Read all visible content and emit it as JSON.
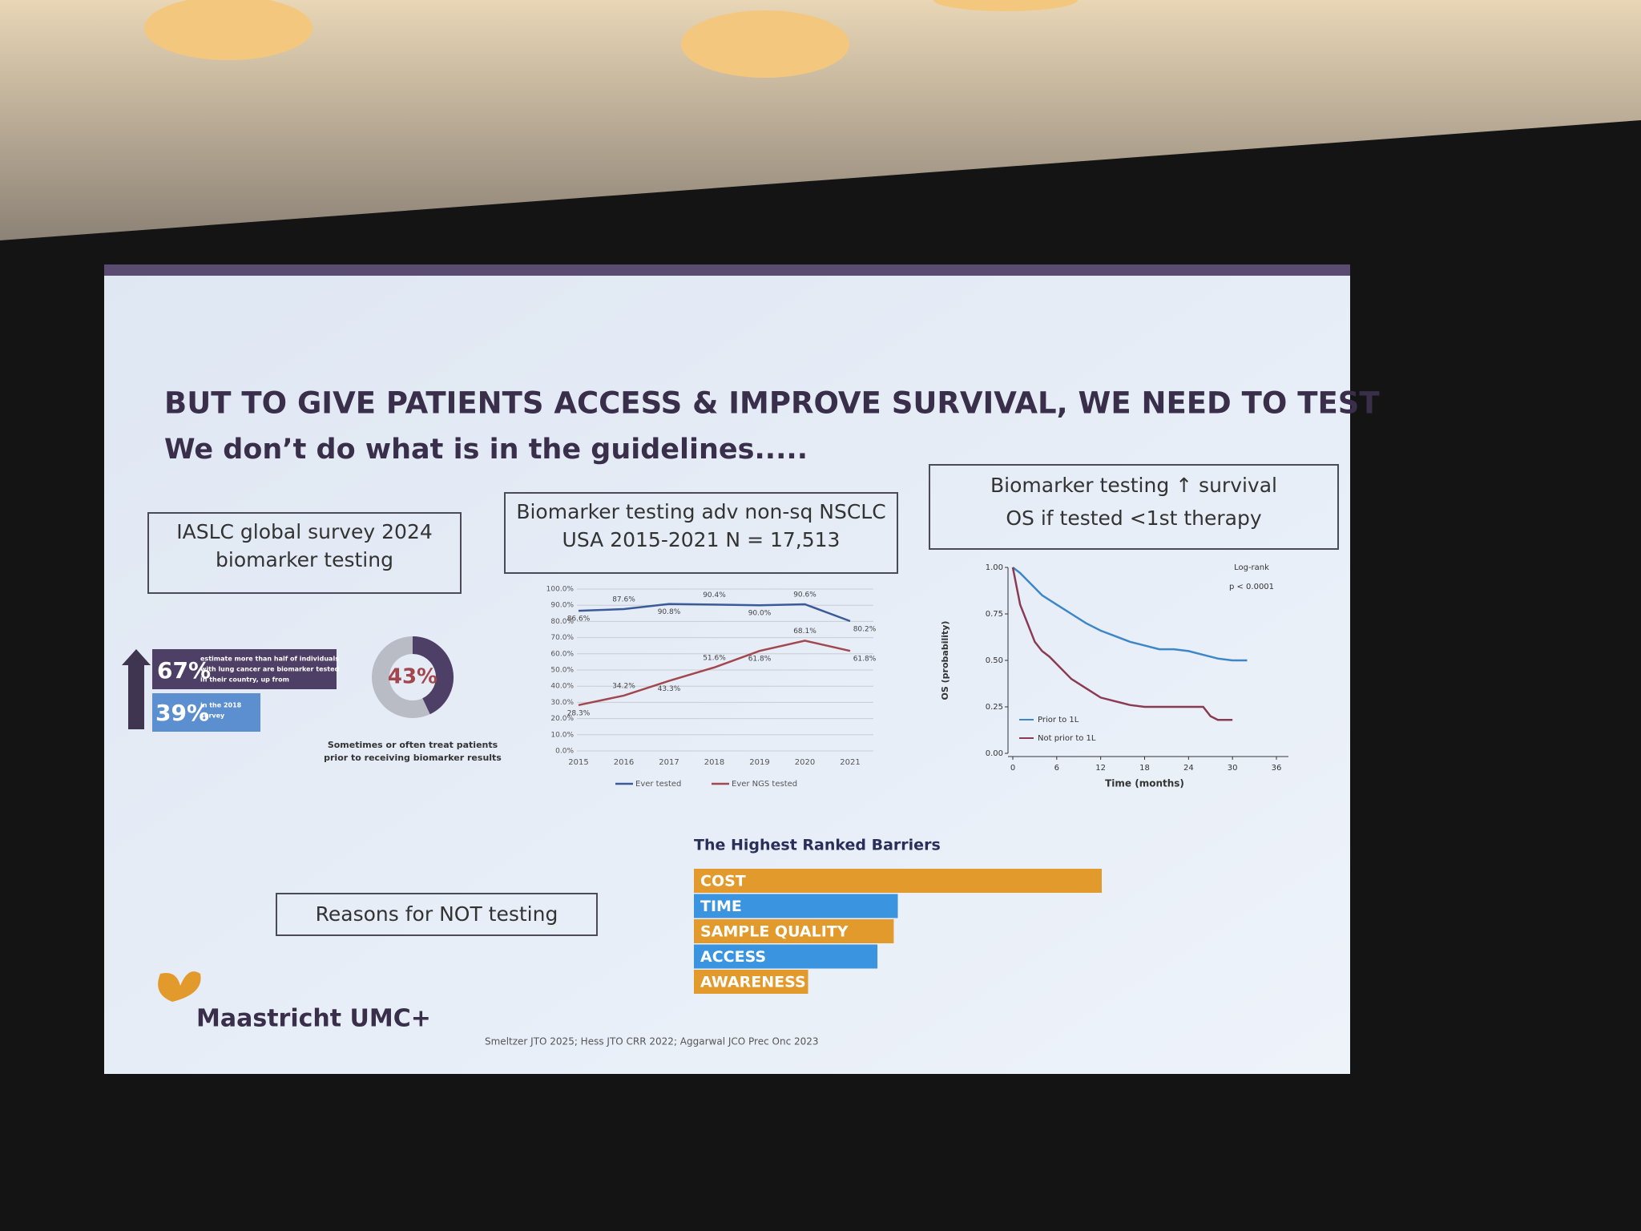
{
  "slide": {
    "title": "BUT TO GIVE PATIENTS ACCESS & IMPROVE SURVIVAL, WE NEED TO TEST",
    "subtitle": "We don’t do what is in the guidelines.....",
    "box_survey": [
      "IASLC global survey 2024",
      "biomarker testing"
    ],
    "box_usa": [
      "Biomarker testing adv non-sq NSCLC",
      "USA 2015-2021 N = 17,513"
    ],
    "box_survival": [
      "Biomarker testing ↑ survival",
      "OS if tested <1st therapy"
    ],
    "stats": [
      {
        "value": "67%",
        "text": [
          "estimate more than half of individuals",
          "with lung cancer are biomarker tested",
          "in their country, up from"
        ]
      },
      {
        "value": "39%",
        "text": [
          "in the 2018",
          "survey"
        ]
      }
    ],
    "reasons": "Reasons for NOT testing",
    "logo": "Maastricht UMC+",
    "footnote": "Smeltzer JTO 2025; Hess JTO CRR 2022; Aggarwal JCO Prec Onc 2023"
  },
  "chart_data": [
    {
      "type": "donut",
      "values": [
        43
      ],
      "value_labels": [
        "43%"
      ],
      "color": "#4e3f66",
      "rest_color": "#b9bcc4",
      "caption": [
        "Sometimes or often treat patients",
        "prior to receiving biomarker results"
      ]
    },
    {
      "type": "line",
      "categories": [
        "2015",
        "2016",
        "2017",
        "2018",
        "2019",
        "2020",
        "2021"
      ],
      "ylim": [
        0,
        100
      ],
      "yticks": [
        {
          "value": 0,
          "label": "0.0%"
        },
        {
          "value": 10,
          "label": "10.0%"
        },
        {
          "value": 20,
          "label": "20.0%"
        },
        {
          "value": 30,
          "label": "30.0%"
        },
        {
          "value": 40,
          "label": "40.0%"
        },
        {
          "value": 50,
          "label": "50.0%"
        },
        {
          "value": 60,
          "label": "60.0%"
        },
        {
          "value": 70,
          "label": "70.0%"
        },
        {
          "value": 80,
          "label": "80.0%"
        },
        {
          "value": 90,
          "label": "90.0%"
        },
        {
          "value": 100,
          "label": "100.0%"
        }
      ],
      "grid": true,
      "series": [
        {
          "name": "Ever tested",
          "color": "#3b5a9a",
          "values": [
            86.6,
            87.6,
            90.8,
            90.4,
            90.0,
            90.6,
            80.2
          ],
          "value_labels": [
            "86.6%",
            "87.6%",
            "90.8%",
            "90.4%",
            "90.0%",
            "90.6%",
            "80.2%"
          ]
        },
        {
          "name": "Ever NGS tested",
          "color": "#a3474f",
          "values": [
            28.3,
            34.2,
            43.3,
            51.6,
            61.8,
            68.1,
            61.8
          ],
          "value_labels": [
            "28.3%",
            "34.2%",
            "43.3%",
            "51.6%",
            "61.8%",
            "68.1%",
            "61.8%"
          ]
        }
      ]
    },
    {
      "type": "km",
      "xlabel": "Time (months)",
      "ylabel": "OS (probability)",
      "annotation": [
        "Log-rank",
        "p < 0.0001"
      ],
      "xlim": [
        0,
        36
      ],
      "xticks": [
        0,
        6,
        12,
        18,
        24,
        30,
        36
      ],
      "ylim": [
        0,
        1
      ],
      "yticks": [
        {
          "value": 0,
          "label": "0.00"
        },
        {
          "value": 0.25,
          "label": "0.25"
        },
        {
          "value": 0.5,
          "label": "0.50"
        },
        {
          "value": 0.75,
          "label": "0.75"
        },
        {
          "value": 1,
          "label": "1.00"
        }
      ],
      "series": [
        {
          "name": "Prior to 1L",
          "color": "#3d86c8",
          "x": [
            0,
            1,
            2,
            3,
            4,
            6,
            8,
            10,
            12,
            14,
            16,
            18,
            20,
            22,
            24,
            26,
            28,
            30,
            32
          ],
          "values": [
            1.0,
            0.97,
            0.93,
            0.89,
            0.85,
            0.8,
            0.75,
            0.7,
            0.66,
            0.63,
            0.6,
            0.58,
            0.56,
            0.56,
            0.55,
            0.53,
            0.51,
            0.5,
            0.5
          ]
        },
        {
          "name": "Not prior to 1L",
          "color": "#8a3a52",
          "x": [
            0,
            0.5,
            1,
            2,
            3,
            4,
            5,
            6,
            8,
            10,
            12,
            14,
            16,
            18,
            20,
            22,
            24,
            26,
            27,
            28,
            30
          ],
          "values": [
            1.0,
            0.9,
            0.8,
            0.7,
            0.6,
            0.55,
            0.52,
            0.48,
            0.4,
            0.35,
            0.3,
            0.28,
            0.26,
            0.25,
            0.25,
            0.25,
            0.25,
            0.25,
            0.2,
            0.18,
            0.18
          ]
        }
      ]
    },
    {
      "type": "hbar",
      "title": "The Highest Ranked Barriers",
      "categories": [
        "COST",
        "TIME",
        "SAMPLE QUALITY",
        "ACCESS",
        "AWARENESS"
      ],
      "values": [
        100,
        50,
        49,
        45,
        28
      ],
      "colors": [
        "#e39a2c",
        "#3a94e0",
        "#e39a2c",
        "#3a94e0",
        "#e39a2c"
      ]
    }
  ]
}
